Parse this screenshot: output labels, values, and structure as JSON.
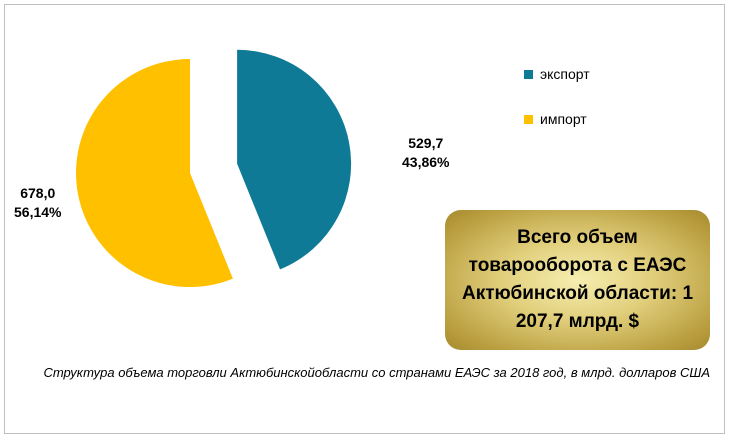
{
  "chart_data": {
    "type": "pie",
    "slices": [
      {
        "name": "экспорт",
        "value": 529.7,
        "value_label": "529,7",
        "percent_label": "43,86%",
        "color": "#0e7a96",
        "exploded": true
      },
      {
        "name": "импорт",
        "value": 678.0,
        "value_label": "678,0",
        "percent_label": "56,14%",
        "color": "#ffc000",
        "exploded": false
      }
    ],
    "legend_position": "top-right",
    "caption": "Структура объема торговли Актюбинскойобласти со странами ЕАЭС за 2018  год, в млрд. долларов США"
  },
  "total_box": {
    "text": "Всего объем товарооборота  с ЕАЭС Актюбинской области: 1 207,7 млрд. $"
  }
}
